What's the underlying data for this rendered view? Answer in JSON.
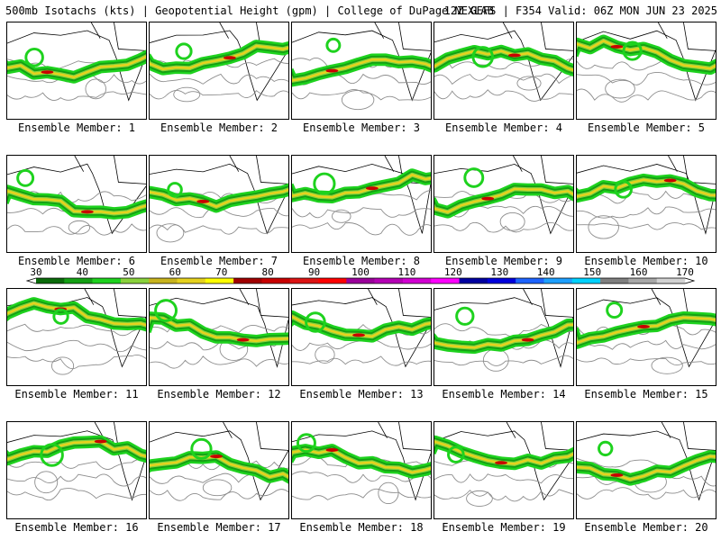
{
  "header": {
    "left": "500mb Isotachs (kts) | Geopotential Height (gpm) | College of DuPage NEXLAB",
    "right": "12Z GEFS | F354 Valid: 06Z MON JUN 23 2025"
  },
  "members": [
    "Ensemble Member: 1",
    "Ensemble Member: 2",
    "Ensemble Member: 3",
    "Ensemble Member: 4",
    "Ensemble Member: 5",
    "Ensemble Member: 6",
    "Ensemble Member: 7",
    "Ensemble Member: 8",
    "Ensemble Member: 9",
    "Ensemble Member: 10",
    "Ensemble Member: 11",
    "Ensemble Member: 12",
    "Ensemble Member: 13",
    "Ensemble Member: 14",
    "Ensemble Member: 15",
    "Ensemble Member: 16",
    "Ensemble Member: 17",
    "Ensemble Member: 18",
    "Ensemble Member: 19",
    "Ensemble Member: 20"
  ],
  "scale": {
    "labels": [
      "30",
      "40",
      "50",
      "60",
      "70",
      "80",
      "90",
      "100",
      "110",
      "120",
      "130",
      "140",
      "150",
      "160",
      "170"
    ],
    "colors": [
      "#0a6b0a",
      "#14a014",
      "#1ed21e",
      "#8ad23c",
      "#c8b41e",
      "#e6d21e",
      "#ffff00",
      "#a00000",
      "#c80000",
      "#dc1414",
      "#ff0000",
      "#9a009a",
      "#b400b4",
      "#d200d2",
      "#ff00ff",
      "#0000a0",
      "#0000dc",
      "#1e64ff",
      "#1ea0ff",
      "#00d2ff",
      "#808080",
      "#a8a8a8",
      "#d2d2d2"
    ]
  }
}
